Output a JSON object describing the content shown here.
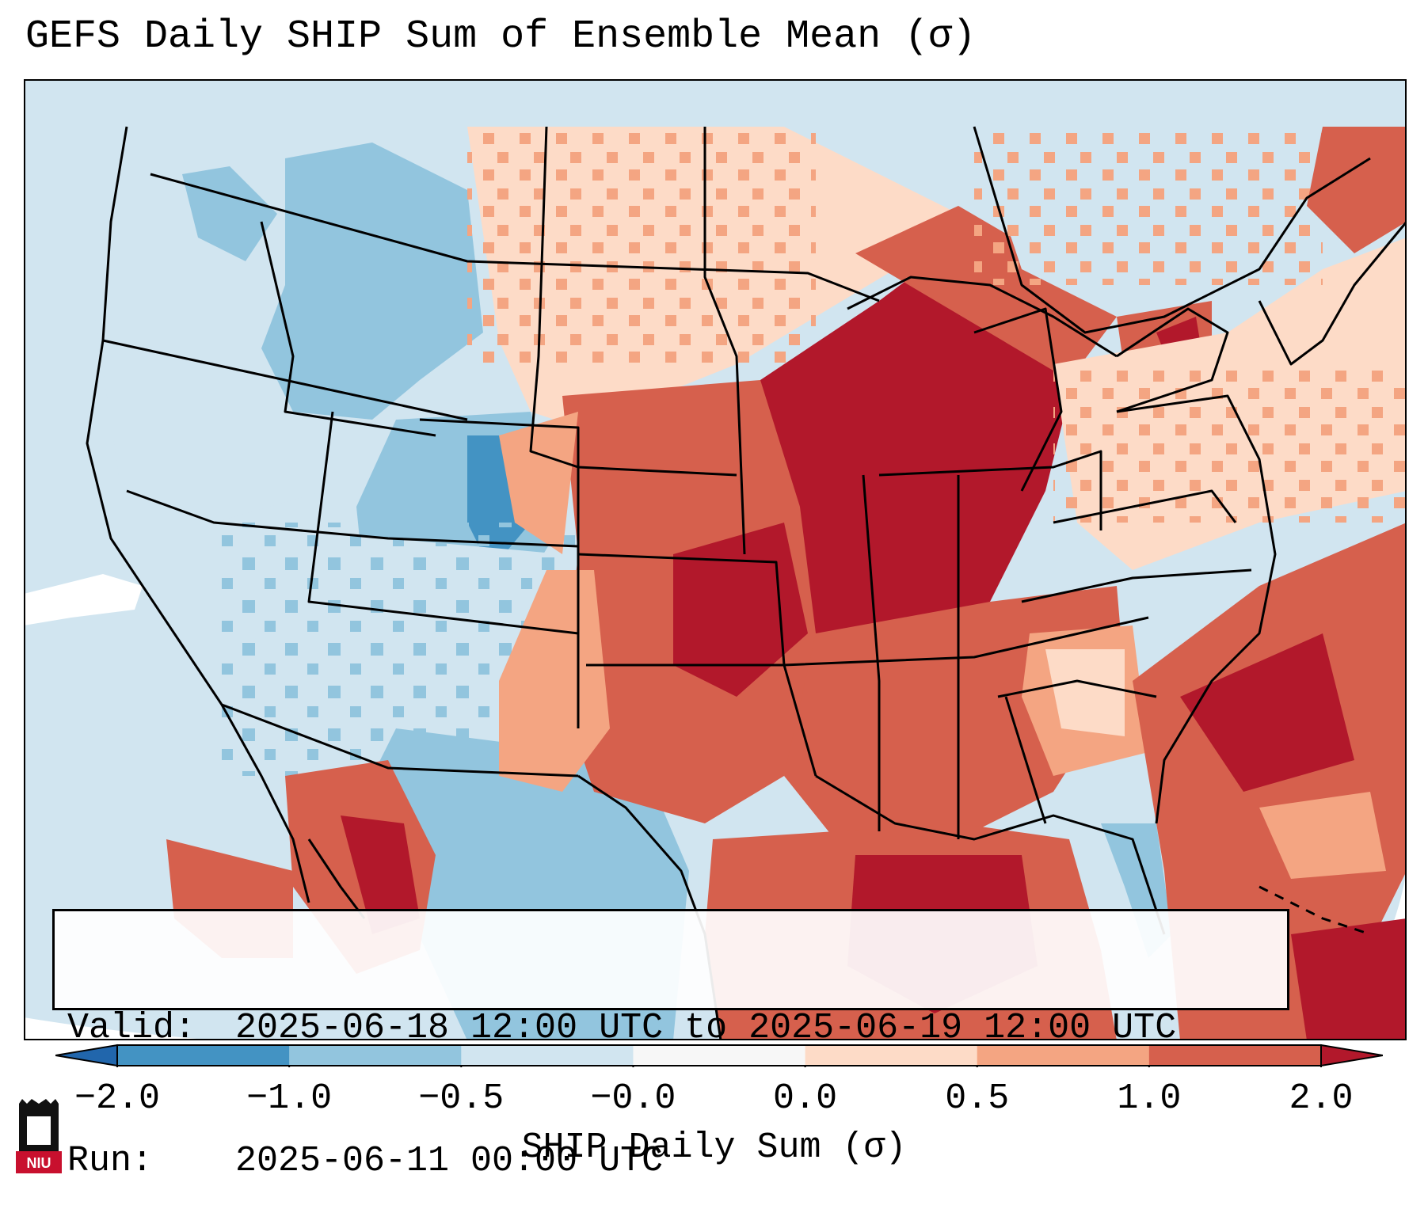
{
  "title": "GEFS Daily SHIP Sum of Ensemble Mean (σ)",
  "info": {
    "valid_label": "Valid:",
    "valid_value": "2025-06-18 12:00 UTC to 2025-06-19 12:00 UTC",
    "run_label": "Run:",
    "run_value": "2025-06-11 00:00 UTC"
  },
  "colorbar": {
    "label": "SHIP Daily Sum (σ)",
    "ticks": [
      "−2.0",
      "−1.0",
      "−0.5",
      "−0.0",
      "0.0",
      "0.5",
      "1.0",
      "2.0"
    ],
    "colors": [
      "#4393c3",
      "#92c5de",
      "#d1e5f0",
      "#f7f7f7",
      "#fddbc7",
      "#f4a582",
      "#d6604d"
    ],
    "extend_low_color": "#2166ac",
    "extend_high_color": "#b2182b"
  },
  "map": {
    "region": "Contiguous United States",
    "ocean_color": "#d1e5f0",
    "outside_color": "#ffffff",
    "regions": [
      {
        "name": "northwest",
        "category": "slightly-below"
      },
      {
        "name": "idaho-montana",
        "category": "below"
      },
      {
        "name": "colorado",
        "category": "below"
      },
      {
        "name": "southwest",
        "category": "slightly-below"
      },
      {
        "name": "northern-plains",
        "category": "slightly-above"
      },
      {
        "name": "central-plains",
        "category": "above"
      },
      {
        "name": "midwest-great-lakes",
        "category": "well-above"
      },
      {
        "name": "southeast",
        "category": "above"
      },
      {
        "name": "gulf-of-mexico",
        "category": "well-above"
      },
      {
        "name": "western-atlantic",
        "category": "above"
      },
      {
        "name": "northeast",
        "category": "slightly-above"
      }
    ]
  },
  "logo": {
    "text": "NIU"
  }
}
